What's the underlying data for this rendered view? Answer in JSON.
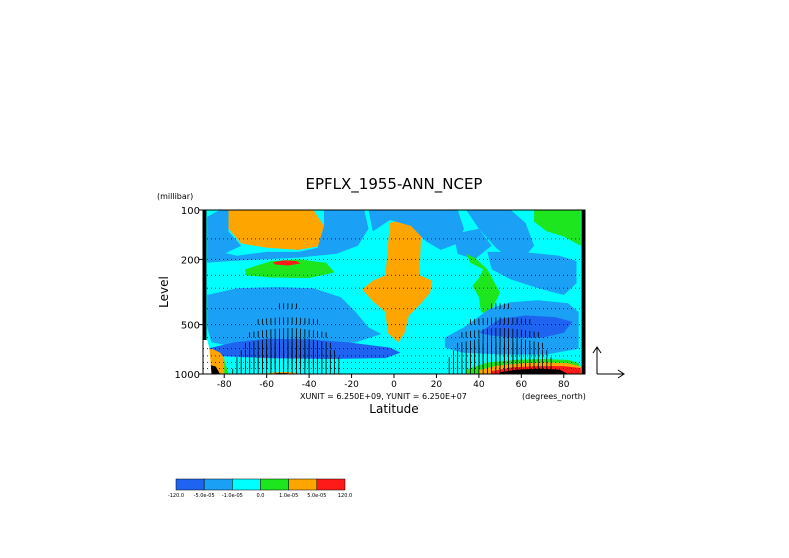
{
  "chart_data": {
    "type": "heatmap",
    "title": "EPFLX_1955-ANN_NCEP",
    "ylabel": "Level",
    "y_unit": "(millibar)",
    "xlabel": "Latitude",
    "x_unit": "(degrees_north)",
    "unit_note": "XUNIT = 6.250E+09, YUNIT = 6.250E+07",
    "y_scale": "log",
    "y_reversed": true,
    "xlim": [
      -90,
      90
    ],
    "ylim": [
      1000,
      100
    ],
    "x_ticks": [
      -80,
      -60,
      -40,
      -20,
      0,
      20,
      40,
      60,
      80
    ],
    "y_ticks": [
      100,
      200,
      500,
      1000
    ],
    "grid": "dotted horizontal lines at pressure levels",
    "colorbar": {
      "levels": [
        "-120.0",
        "-5.0e-05",
        "-1.0e-05",
        "0.0",
        "1.0e-05",
        "5.0e-05",
        "120.0"
      ],
      "colors": [
        "#1e64f0",
        "#1aa0f5",
        "#00ffff",
        "#1ee61e",
        "#ffa500",
        "#ff1a1a"
      ]
    },
    "regions": [
      {
        "class": 1,
        "shape": "rect",
        "x": [
          -90,
          90
        ],
        "y": [
          100,
          1000
        ],
        "note": "background cyan (-1.0e-05 to 0.0)"
      },
      {
        "class": 3,
        "shape": "poly",
        "points": [
          [
            -78,
            100
          ],
          [
            -38,
            100
          ],
          [
            -33,
            125
          ],
          [
            -34,
            165
          ],
          [
            -45,
            175
          ],
          [
            -60,
            170
          ],
          [
            -72,
            160
          ],
          [
            -78,
            130
          ]
        ]
      },
      {
        "class": 0,
        "shape": "poly",
        "points": [
          [
            -88,
            110
          ],
          [
            -82,
            100
          ],
          [
            -78,
            100
          ],
          [
            -78,
            135
          ],
          [
            -72,
            165
          ],
          [
            -80,
            185
          ],
          [
            -88,
            180
          ]
        ]
      },
      {
        "class": 0,
        "shape": "poly",
        "points": [
          [
            -88,
            175
          ],
          [
            -82,
            180
          ],
          [
            -74,
            190
          ],
          [
            -60,
            180
          ],
          [
            -45,
            180
          ],
          [
            -36,
            170
          ],
          [
            -33,
            125
          ],
          [
            -33,
            100
          ],
          [
            -14,
            100
          ],
          [
            -12,
            130
          ],
          [
            -17,
            165
          ],
          [
            -27,
            185
          ],
          [
            -45,
            195
          ],
          [
            -62,
            200
          ],
          [
            -78,
            205
          ],
          [
            -88,
            210
          ]
        ]
      },
      {
        "class": 2,
        "shape": "poly",
        "points": [
          [
            -70,
            230
          ],
          [
            -58,
            205
          ],
          [
            -45,
            200
          ],
          [
            -32,
            210
          ],
          [
            -28,
            240
          ],
          [
            -40,
            260
          ],
          [
            -58,
            258
          ],
          [
            -70,
            250
          ]
        ]
      },
      {
        "class": 4,
        "shape": "poly",
        "points": [
          [
            -57,
            208
          ],
          [
            -52,
            203
          ],
          [
            -46,
            205
          ],
          [
            -44,
            212
          ],
          [
            -50,
            218
          ],
          [
            -56,
            215
          ]
        ]
      },
      {
        "class": 3,
        "shape": "poly",
        "points": [
          [
            -2,
            120
          ],
          [
            6,
            112
          ],
          [
            13,
            120
          ],
          [
            12,
            250
          ],
          [
            18,
            270
          ],
          [
            17,
            320
          ],
          [
            12,
            380
          ],
          [
            7,
            440
          ],
          [
            5,
            560
          ],
          [
            2,
            640
          ],
          [
            -3,
            560
          ],
          [
            -4,
            420
          ],
          [
            -10,
            360
          ],
          [
            -15,
            305
          ],
          [
            -10,
            270
          ],
          [
            -4,
            250
          ]
        ]
      },
      {
        "class": 0,
        "shape": "poly",
        "points": [
          [
            -12,
            100
          ],
          [
            30,
            100
          ],
          [
            33,
            130
          ],
          [
            30,
            160
          ],
          [
            22,
            175
          ],
          [
            15,
            155
          ],
          [
            8,
            125
          ],
          [
            -2,
            115
          ],
          [
            -10,
            135
          ]
        ]
      },
      {
        "class": 0,
        "shape": "poly",
        "points": [
          [
            28,
            140
          ],
          [
            40,
            130
          ],
          [
            46,
            165
          ],
          [
            38,
            200
          ],
          [
            30,
            185
          ]
        ]
      },
      {
        "class": 0,
        "shape": "poly",
        "points": [
          [
            34,
            100
          ],
          [
            55,
            100
          ],
          [
            62,
            120
          ],
          [
            66,
            165
          ],
          [
            62,
            190
          ],
          [
            55,
            200
          ],
          [
            48,
            170
          ],
          [
            40,
            130
          ]
        ]
      },
      {
        "class": 2,
        "shape": "poly",
        "points": [
          [
            34,
            185
          ],
          [
            36,
            210
          ],
          [
            42,
            230
          ],
          [
            40,
            260
          ],
          [
            37,
            290
          ],
          [
            40,
            340
          ],
          [
            41,
            420
          ],
          [
            45,
            430
          ],
          [
            50,
            320
          ],
          [
            44,
            230
          ],
          [
            38,
            195
          ]
        ]
      },
      {
        "class": 0,
        "shape": "poly",
        "points": [
          [
            44,
            180
          ],
          [
            60,
            180
          ],
          [
            78,
            190
          ],
          [
            86,
            205
          ],
          [
            86,
            280
          ],
          [
            80,
            330
          ],
          [
            68,
            300
          ],
          [
            55,
            265
          ],
          [
            46,
            230
          ]
        ]
      },
      {
        "class": 2,
        "shape": "poly",
        "points": [
          [
            66,
            100
          ],
          [
            88,
            100
          ],
          [
            88,
            165
          ],
          [
            80,
            145
          ],
          [
            72,
            135
          ],
          [
            66,
            118
          ]
        ]
      },
      {
        "class": 0,
        "shape": "poly",
        "points": [
          [
            -88,
            330
          ],
          [
            -74,
            300
          ],
          [
            -55,
            295
          ],
          [
            -38,
            300
          ],
          [
            -25,
            340
          ],
          [
            -18,
            420
          ],
          [
            -12,
            520
          ],
          [
            -6,
            570
          ],
          [
            -18,
            640
          ],
          [
            -40,
            680
          ],
          [
            -60,
            690
          ],
          [
            -76,
            680
          ],
          [
            -86,
            640
          ],
          [
            -88,
            520
          ]
        ]
      },
      {
        "class": -1,
        "shape": "poly",
        "points": [
          [
            -88,
            700
          ],
          [
            -75,
            640
          ],
          [
            -60,
            610
          ],
          [
            -40,
            615
          ],
          [
            -22,
            640
          ],
          [
            -2,
            690
          ],
          [
            3,
            740
          ],
          [
            -4,
            800
          ],
          [
            -30,
            810
          ],
          [
            -60,
            800
          ],
          [
            -80,
            780
          ],
          [
            -88,
            760
          ]
        ]
      },
      {
        "class": 0,
        "shape": "poly",
        "points": [
          [
            24,
            600
          ],
          [
            33,
            520
          ],
          [
            45,
            400
          ],
          [
            55,
            365
          ],
          [
            68,
            355
          ],
          [
            82,
            370
          ],
          [
            87,
            420
          ],
          [
            87,
            700
          ],
          [
            72,
            760
          ],
          [
            50,
            760
          ],
          [
            32,
            740
          ],
          [
            24,
            690
          ]
        ]
      },
      {
        "class": -1,
        "shape": "poly",
        "points": [
          [
            40,
            560
          ],
          [
            50,
            460
          ],
          [
            62,
            440
          ],
          [
            76,
            450
          ],
          [
            84,
            480
          ],
          [
            80,
            560
          ],
          [
            70,
            600
          ],
          [
            55,
            600
          ],
          [
            45,
            580
          ]
        ]
      },
      {
        "class": 1,
        "shape": "poly",
        "points": [
          [
            30,
            850
          ],
          [
            44,
            790
          ],
          [
            58,
            760
          ],
          [
            72,
            760
          ],
          [
            84,
            780
          ],
          [
            88,
            830
          ],
          [
            88,
            1000
          ],
          [
            30,
            1000
          ]
        ]
      },
      {
        "class": 2,
        "shape": "poly",
        "points": [
          [
            34,
            940
          ],
          [
            44,
            850
          ],
          [
            58,
            820
          ],
          [
            70,
            810
          ],
          [
            82,
            820
          ],
          [
            87,
            860
          ],
          [
            88,
            1000
          ],
          [
            34,
            1000
          ]
        ]
      },
      {
        "class": 3,
        "shape": "poly",
        "points": [
          [
            40,
            950
          ],
          [
            48,
            890
          ],
          [
            60,
            860
          ],
          [
            72,
            850
          ],
          [
            82,
            860
          ],
          [
            88,
            900
          ],
          [
            88,
            1000
          ],
          [
            40,
            1000
          ]
        ]
      },
      {
        "class": 4,
        "shape": "poly",
        "points": [
          [
            46,
            960
          ],
          [
            56,
            910
          ],
          [
            68,
            895
          ],
          [
            80,
            895
          ],
          [
            88,
            920
          ],
          [
            88,
            1000
          ],
          [
            46,
            1000
          ]
        ]
      },
      {
        "class": 5,
        "shape": "poly",
        "points": [
          [
            50,
            975
          ],
          [
            58,
            940
          ],
          [
            68,
            930
          ],
          [
            78,
            940
          ],
          [
            82,
            1000
          ],
          [
            50,
            1000
          ]
        ]
      },
      {
        "class": 1,
        "shape": "poly",
        "points": [
          [
            -82,
            850
          ],
          [
            -70,
            830
          ],
          [
            -55,
            840
          ],
          [
            -35,
            860
          ],
          [
            -25,
            900
          ],
          [
            -22,
            1000
          ],
          [
            -82,
            1000
          ]
        ]
      },
      {
        "class": 2,
        "shape": "poly",
        "points": [
          [
            -82,
            780
          ],
          [
            -80,
            820
          ],
          [
            -78,
            1000
          ],
          [
            -86,
            1000
          ],
          [
            -88,
            820
          ]
        ]
      },
      {
        "class": 3,
        "shape": "poly",
        "points": [
          [
            -86,
            700
          ],
          [
            -82,
            740
          ],
          [
            -80,
            800
          ],
          [
            -80,
            1000
          ],
          [
            -88,
            1000
          ],
          [
            -88,
            720
          ]
        ]
      },
      {
        "class": 5,
        "shape": "poly",
        "points": [
          [
            -87,
            880
          ],
          [
            -84,
            900
          ],
          [
            -82,
            1000
          ],
          [
            -88,
            1000
          ]
        ]
      },
      {
        "class": 3,
        "shape": "poly",
        "points": [
          [
            -60,
            990
          ],
          [
            -56,
            975
          ],
          [
            -50,
            972
          ],
          [
            -46,
            985
          ],
          [
            -46,
            1000
          ],
          [
            -60,
            1000
          ]
        ]
      },
      {
        "class": 5,
        "shape": "poly",
        "points": [
          [
            -58,
            1000
          ],
          [
            -55,
            988
          ],
          [
            -51,
            988
          ],
          [
            -49,
            1000
          ]
        ]
      },
      {
        "class": 5,
        "shape": "rect",
        "x": [
          -90,
          -88.4
        ],
        "y": [
          100,
          1000
        ]
      },
      {
        "class": 5,
        "shape": "rect",
        "x": [
          88.4,
          90
        ],
        "y": [
          100,
          1000
        ]
      }
    ],
    "missing_regions": [
      {
        "shape": "poly",
        "points": [
          [
            -90,
            620
          ],
          [
            -88,
            620
          ],
          [
            -87,
            700
          ],
          [
            -86,
            1000
          ],
          [
            -90,
            1000
          ]
        ]
      }
    ],
    "arrow_field": {
      "note": "EP flux vectors concentrated near surface between 30S-80S and 30N-80N",
      "x_range": [
        -88,
        88
      ],
      "x_step": 2,
      "levels": [
        1000,
        925,
        850,
        775,
        700,
        600,
        500,
        400,
        300,
        250,
        200,
        150,
        100
      ]
    }
  }
}
